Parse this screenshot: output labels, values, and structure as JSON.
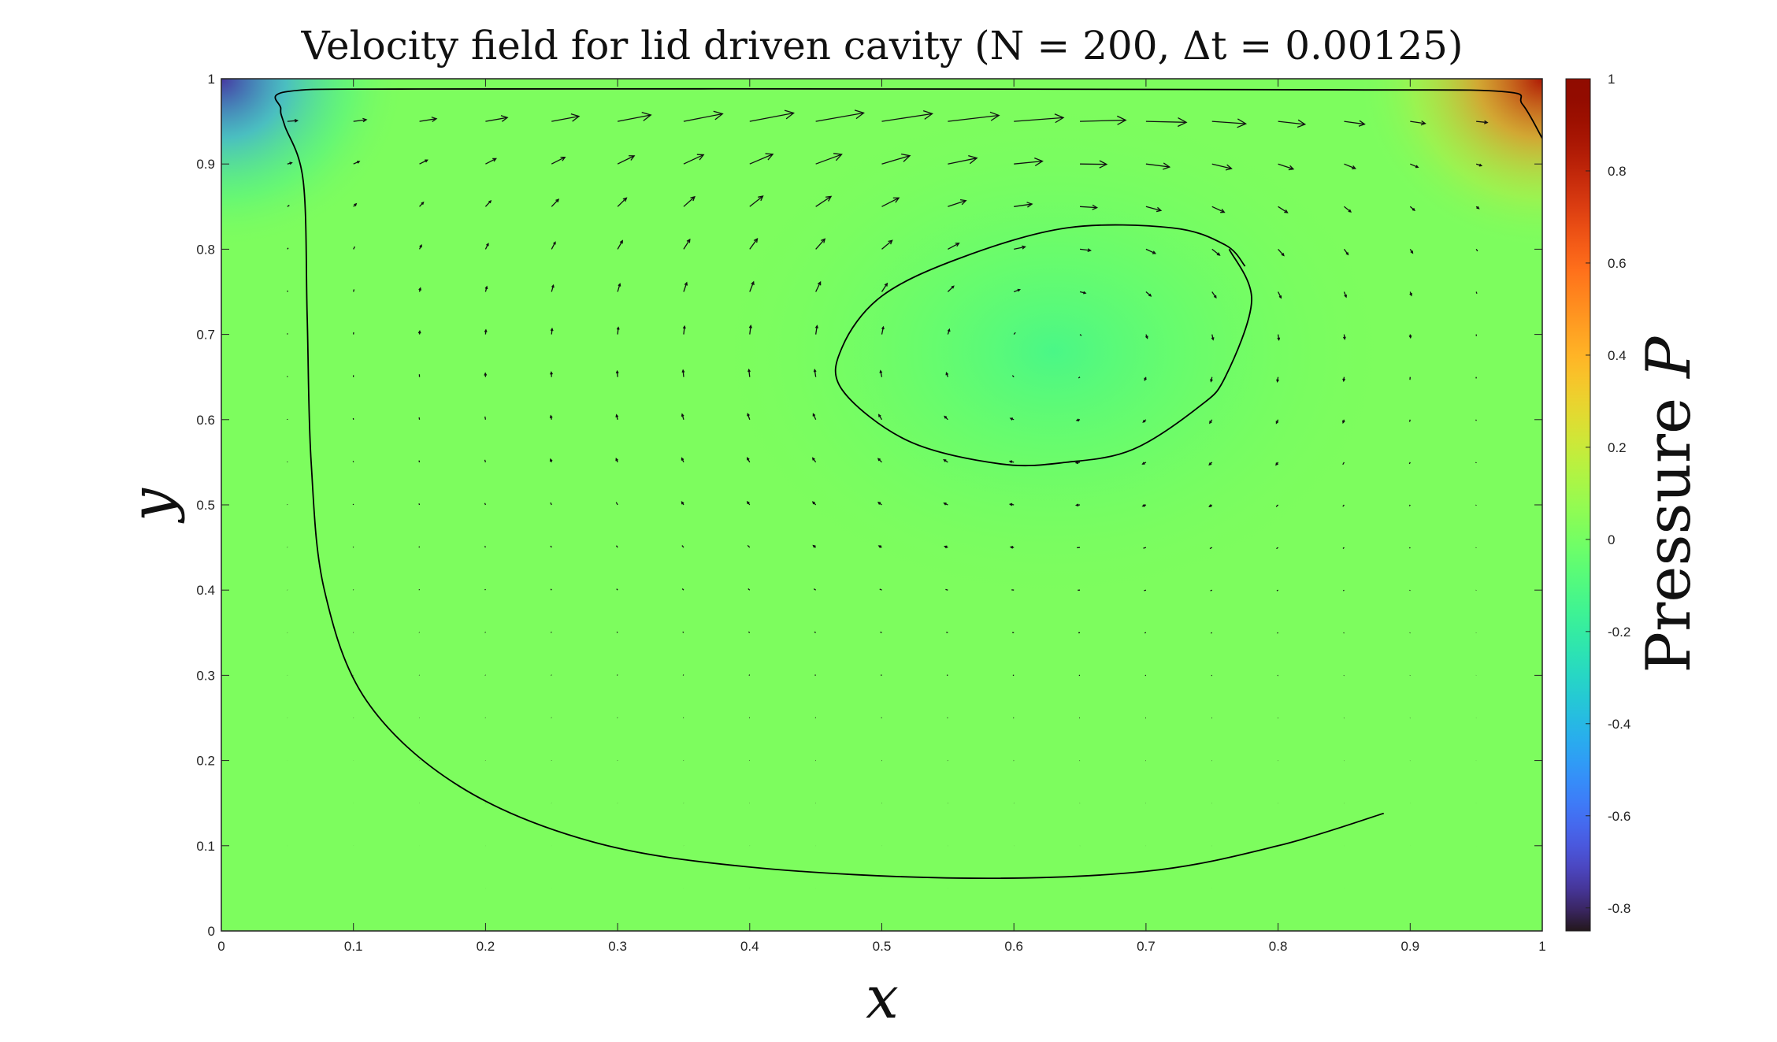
{
  "chart_data": {
    "type": "quiver",
    "title": "Velocity field for lid driven cavity (N = 200, Δt = 0.00125)",
    "xlabel": "x",
    "ylabel": "y",
    "xlim": [
      0,
      1
    ],
    "ylim": [
      0,
      1
    ],
    "x_ticks": [
      "0",
      "0.1",
      "0.2",
      "0.3",
      "0.4",
      "0.5",
      "0.6",
      "0.7",
      "0.8",
      "0.9",
      "1"
    ],
    "y_ticks": [
      "0",
      "0.1",
      "0.2",
      "0.3",
      "0.4",
      "0.5",
      "0.6",
      "0.7",
      "0.8",
      "0.9",
      "1"
    ],
    "grid": false,
    "background_field": "pressure",
    "colorbar": {
      "label_text": "Pressure ",
      "label_var": "P",
      "range": [
        -0.85,
        1
      ],
      "ticks": [
        "1",
        "0.8",
        "0.6",
        "0.4",
        "0.2",
        "0",
        "-0.2",
        "-0.4",
        "-0.6",
        "-0.8"
      ],
      "tick_values": [
        1,
        0.8,
        0.6,
        0.4,
        0.2,
        0,
        -0.2,
        -0.4,
        -0.6,
        -0.8
      ],
      "colormap": "turbo"
    },
    "pressure_features": [
      {
        "name": "upper-left-low",
        "x": 0,
        "y": 1,
        "p": -0.75
      },
      {
        "name": "upper-right-high",
        "x": 1,
        "y": 1,
        "p": 0.85
      },
      {
        "name": "vortex-center",
        "x": 0.63,
        "y": 0.68,
        "p": -0.12
      }
    ],
    "vortex_center": [
      0.63,
      0.68
    ],
    "quiver_grid": {
      "x0": 0.05,
      "dx": 0.05,
      "nx": 19,
      "y0": 0.05,
      "dy": 0.05,
      "ny": 19
    },
    "streamlines": [
      {
        "name": "outer-streamline",
        "points": [
          [
            0.88,
            0.138
          ],
          [
            0.8,
            0.1
          ],
          [
            0.7,
            0.07
          ],
          [
            0.56,
            0.062
          ],
          [
            0.4,
            0.075
          ],
          [
            0.28,
            0.105
          ],
          [
            0.18,
            0.17
          ],
          [
            0.11,
            0.27
          ],
          [
            0.078,
            0.4
          ],
          [
            0.068,
            0.55
          ],
          [
            0.065,
            0.72
          ],
          [
            0.062,
            0.88
          ],
          [
            0.048,
            0.945
          ],
          [
            0.045,
            0.965
          ],
          [
            0.05,
            0.985
          ],
          [
            0.15,
            0.988
          ],
          [
            0.5,
            0.988
          ],
          [
            0.85,
            0.987
          ],
          [
            0.97,
            0.985
          ],
          [
            0.985,
            0.97
          ],
          [
            1.0,
            0.93
          ]
        ]
      },
      {
        "name": "inner-streamline",
        "points": [
          [
            0.763,
            0.8
          ],
          [
            0.78,
            0.74
          ],
          [
            0.76,
            0.65
          ],
          [
            0.74,
            0.615
          ],
          [
            0.69,
            0.565
          ],
          [
            0.64,
            0.55
          ],
          [
            0.59,
            0.548
          ],
          [
            0.52,
            0.575
          ],
          [
            0.47,
            0.635
          ],
          [
            0.47,
            0.685
          ],
          [
            0.5,
            0.745
          ],
          [
            0.56,
            0.79
          ],
          [
            0.64,
            0.825
          ],
          [
            0.72,
            0.825
          ],
          [
            0.76,
            0.805
          ],
          [
            0.775,
            0.78
          ]
        ]
      }
    ]
  }
}
